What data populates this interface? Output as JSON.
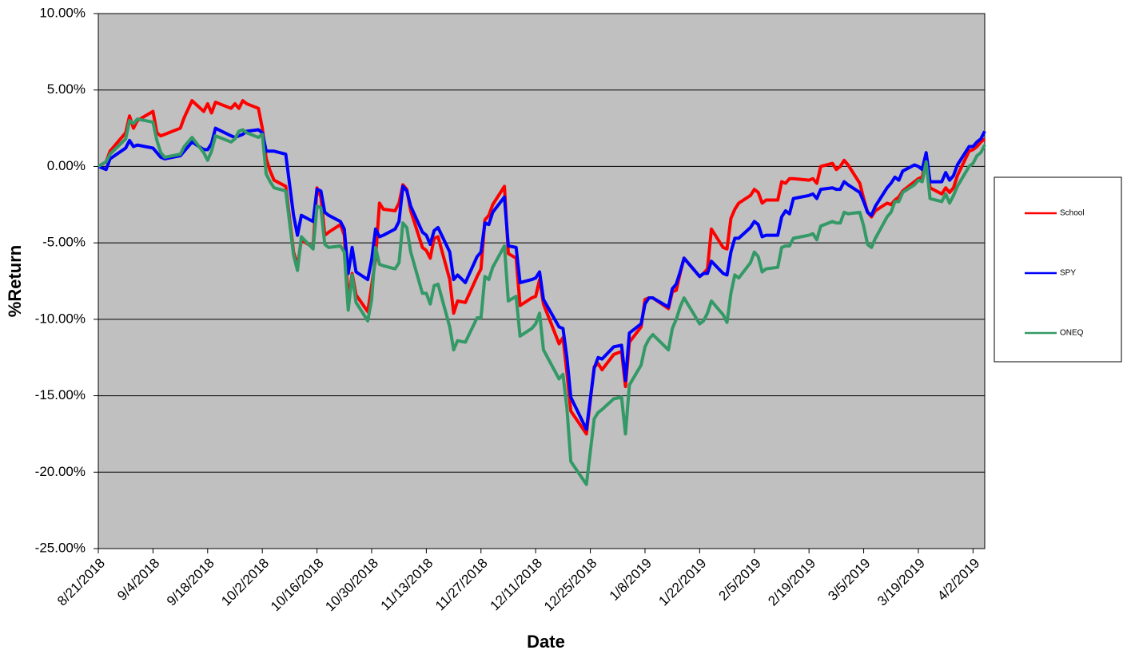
{
  "chart_data": {
    "type": "line",
    "x_label": "Date",
    "y_label": "%Return",
    "grid": true,
    "legend": "right",
    "plot_background": "#c0c0c0",
    "xlim": [
      "8/21/2018",
      "4/5/2019"
    ],
    "xticks": [
      "8/21/2018",
      "9/4/2018",
      "9/18/2018",
      "10/2/2018",
      "10/16/2018",
      "10/30/2018",
      "11/13/2018",
      "11/27/2018",
      "12/11/2018",
      "12/25/2018",
      "1/8/2019",
      "1/22/2019",
      "2/5/2019",
      "2/19/2019",
      "3/5/2019",
      "3/19/2019",
      "4/2/2019"
    ],
    "ylim": [
      -25,
      10
    ],
    "yticks": [
      {
        "value": -25,
        "label": "-25.00%"
      },
      {
        "value": -20,
        "label": "-20.00%"
      },
      {
        "value": -15,
        "label": "-15.00%"
      },
      {
        "value": -10,
        "label": "-10.00%"
      },
      {
        "value": -5,
        "label": "-5.00%"
      },
      {
        "value": 0,
        "label": "0.00%"
      },
      {
        "value": 5,
        "label": "5.00%"
      },
      {
        "value": 10,
        "label": "10.00%"
      }
    ],
    "x": [
      "8/21/2018",
      "8/23/2018",
      "8/24/2018",
      "8/28/2018",
      "8/29/2018",
      "8/30/2018",
      "8/31/2018",
      "9/4/2018",
      "9/5/2018",
      "9/6/2018",
      "9/7/2018",
      "9/11/2018",
      "9/12/2018",
      "9/14/2018",
      "9/17/2018",
      "9/18/2018",
      "9/19/2018",
      "9/20/2018",
      "9/24/2018",
      "9/25/2018",
      "9/26/2018",
      "9/27/2018",
      "9/28/2018",
      "10/1/2018",
      "10/2/2018",
      "10/3/2018",
      "10/4/2018",
      "10/5/2018",
      "10/8/2018",
      "10/10/2018",
      "10/11/2018",
      "10/12/2018",
      "10/15/2018",
      "10/16/2018",
      "10/17/2018",
      "10/18/2018",
      "10/19/2018",
      "10/22/2018",
      "10/23/2018",
      "10/24/2018",
      "10/25/2018",
      "10/26/2018",
      "10/29/2018",
      "10/30/2018",
      "10/31/2018",
      "11/1/2018",
      "11/2/2018",
      "11/5/2018",
      "11/6/2018",
      "11/7/2018",
      "11/8/2018",
      "11/9/2018",
      "11/12/2018",
      "11/13/2018",
      "11/14/2018",
      "11/15/2018",
      "11/16/2018",
      "11/19/2018",
      "11/20/2018",
      "11/21/2018",
      "11/23/2018",
      "11/26/2018",
      "11/27/2018",
      "11/28/2018",
      "11/29/2018",
      "11/30/2018",
      "12/3/2018",
      "12/4/2018",
      "12/6/2018",
      "12/7/2018",
      "12/10/2018",
      "12/11/2018",
      "12/12/2018",
      "12/13/2018",
      "12/17/2018",
      "12/18/2018",
      "12/19/2018",
      "12/20/2018",
      "12/24/2018",
      "12/26/2018",
      "12/27/2018",
      "12/28/2018",
      "12/31/2018",
      "1/2/2019",
      "1/3/2019",
      "1/4/2019",
      "1/7/2019",
      "1/8/2019",
      "1/9/2019",
      "1/10/2019",
      "1/14/2019",
      "1/15/2019",
      "1/16/2019",
      "1/17/2019",
      "1/18/2019",
      "1/22/2019",
      "1/23/2019",
      "1/24/2019",
      "1/25/2019",
      "1/28/2019",
      "1/29/2019",
      "1/30/2019",
      "1/31/2019",
      "2/1/2019",
      "2/4/2019",
      "2/5/2019",
      "2/6/2019",
      "2/7/2019",
      "2/8/2019",
      "2/11/2019",
      "2/12/2019",
      "2/13/2019",
      "2/14/2019",
      "2/15/2019",
      "2/19/2019",
      "2/20/2019",
      "2/21/2019",
      "2/22/2019",
      "2/25/2019",
      "2/26/2019",
      "2/27/2019",
      "2/28/2019",
      "3/1/2019",
      "3/4/2019",
      "3/5/2019",
      "3/6/2019",
      "3/7/2019",
      "3/8/2019",
      "3/11/2019",
      "3/12/2019",
      "3/13/2019",
      "3/14/2019",
      "3/15/2019",
      "3/18/2019",
      "3/19/2019",
      "3/20/2019",
      "3/21/2019",
      "3/22/2019",
      "3/25/2019",
      "3/26/2019",
      "3/27/2019",
      "3/28/2019",
      "3/29/2019",
      "4/1/2019",
      "4/2/2019",
      "4/3/2019",
      "4/4/2019",
      "4/5/2019"
    ],
    "series": [
      {
        "name": "School",
        "color": "#ff0000",
        "values": [
          0,
          0.3,
          1.0,
          2.2,
          3.3,
          2.5,
          3.0,
          3.6,
          2.2,
          2.0,
          2.1,
          2.5,
          3.2,
          4.3,
          3.6,
          4.1,
          3.5,
          4.2,
          3.8,
          4.1,
          3.8,
          4.3,
          4.1,
          3.8,
          2.5,
          0.5,
          -0.3,
          -0.9,
          -1.3,
          -5.6,
          -6.5,
          -4.8,
          -5.3,
          -1.4,
          -2.0,
          -4.5,
          -4.3,
          -3.8,
          -4.5,
          -8.8,
          -7.0,
          -8.4,
          -9.5,
          -7.8,
          -6.0,
          -2.4,
          -2.8,
          -2.9,
          -2.4,
          -1.2,
          -1.5,
          -2.9,
          -5.3,
          -5.5,
          -6.0,
          -4.7,
          -4.6,
          -7.4,
          -9.6,
          -8.8,
          -8.9,
          -7.2,
          -6.7,
          -3.5,
          -3.2,
          -2.5,
          -1.3,
          -5.7,
          -6.0,
          -9.1,
          -8.6,
          -8.5,
          -7.4,
          -9.0,
          -11.6,
          -11.2,
          -13.5,
          -16.0,
          -17.5,
          -13.1,
          -12.9,
          -13.3,
          -12.3,
          -12.1,
          -14.4,
          -11.5,
          -10.5,
          -8.7,
          -8.6,
          -8.6,
          -9.3,
          -8.2,
          -8.1,
          -7.0,
          -6.0,
          -7.2,
          -7.0,
          -6.7,
          -4.1,
          -5.3,
          -5.4,
          -3.4,
          -2.8,
          -2.4,
          -1.9,
          -1.5,
          -1.7,
          -2.4,
          -2.2,
          -2.2,
          -1.0,
          -1.1,
          -0.8,
          -0.8,
          -0.9,
          -0.8,
          -1.1,
          0.0,
          0.2,
          -0.2,
          0.0,
          0.4,
          0.1,
          -1.1,
          -2.1,
          -3.0,
          -3.3,
          -2.9,
          -2.4,
          -2.5,
          -2.2,
          -2.0,
          -1.6,
          -1.0,
          -0.8,
          -0.7,
          0.6,
          -1.4,
          -1.8,
          -1.4,
          -1.7,
          -1.4,
          -0.6,
          1.0,
          1.1,
          1.3,
          1.6,
          1.8
        ]
      },
      {
        "name": "SPY",
        "color": "#0000ff",
        "values": [
          0,
          -0.2,
          0.5,
          1.2,
          1.7,
          1.3,
          1.4,
          1.2,
          0.9,
          0.6,
          0.5,
          0.7,
          1.0,
          1.6,
          1.1,
          1.1,
          1.5,
          2.5,
          2.0,
          1.9,
          2.0,
          2.1,
          2.3,
          2.4,
          2.2,
          1.0,
          1.0,
          1.0,
          0.8,
          -3.2,
          -4.5,
          -3.2,
          -3.6,
          -1.5,
          -1.6,
          -3.0,
          -3.2,
          -3.6,
          -4.1,
          -7.0,
          -5.3,
          -6.9,
          -7.4,
          -6.1,
          -4.1,
          -4.6,
          -4.5,
          -4.1,
          -3.6,
          -1.3,
          -1.6,
          -2.6,
          -4.3,
          -4.5,
          -5.1,
          -4.2,
          -4.0,
          -5.6,
          -7.4,
          -7.1,
          -7.6,
          -5.9,
          -5.6,
          -3.7,
          -3.8,
          -3.0,
          -2.0,
          -5.2,
          -5.3,
          -7.6,
          -7.4,
          -7.3,
          -6.9,
          -8.7,
          -10.5,
          -10.6,
          -12.5,
          -15.1,
          -17.2,
          -13.2,
          -12.5,
          -12.6,
          -11.8,
          -11.7,
          -14.0,
          -10.9,
          -10.3,
          -9.0,
          -8.6,
          -8.6,
          -9.2,
          -8.0,
          -7.7,
          -6.9,
          -6.0,
          -7.2,
          -7.0,
          -7.0,
          -6.2,
          -7.0,
          -7.1,
          -5.6,
          -4.7,
          -4.7,
          -4.0,
          -3.6,
          -3.8,
          -4.6,
          -4.5,
          -4.5,
          -3.3,
          -2.9,
          -3.1,
          -2.1,
          -1.9,
          -1.8,
          -2.1,
          -1.5,
          -1.4,
          -1.5,
          -1.5,
          -1.0,
          -1.2,
          -1.7,
          -2.3,
          -3.0,
          -3.2,
          -2.6,
          -1.4,
          -1.1,
          -0.7,
          -0.9,
          -0.3,
          0.1,
          0.0,
          -0.2,
          0.9,
          -1.0,
          -1.0,
          -0.4,
          -0.9,
          -0.6,
          0.1,
          1.3,
          1.3,
          1.6,
          1.8,
          2.3
        ]
      },
      {
        "name": "ONEQ",
        "color": "#339966",
        "values": [
          0,
          0.3,
          0.8,
          1.8,
          3.0,
          2.8,
          3.1,
          2.9,
          1.7,
          0.9,
          0.6,
          0.8,
          1.3,
          1.9,
          0.9,
          0.4,
          1.0,
          2.0,
          1.6,
          1.8,
          2.3,
          2.4,
          2.2,
          1.9,
          2.1,
          -0.5,
          -1.0,
          -1.4,
          -1.6,
          -5.8,
          -6.8,
          -4.6,
          -5.4,
          -2.6,
          -2.7,
          -5.1,
          -5.3,
          -5.2,
          -5.6,
          -9.4,
          -7.1,
          -8.9,
          -10.1,
          -8.7,
          -5.3,
          -6.4,
          -6.5,
          -6.7,
          -6.3,
          -3.7,
          -4.0,
          -5.6,
          -8.3,
          -8.3,
          -9.0,
          -7.8,
          -7.7,
          -10.5,
          -12.0,
          -11.4,
          -11.5,
          -9.9,
          -9.9,
          -7.2,
          -7.4,
          -6.6,
          -5.2,
          -8.8,
          -8.5,
          -11.1,
          -10.6,
          -10.3,
          -9.6,
          -12.0,
          -13.9,
          -13.6,
          -15.8,
          -19.3,
          -20.8,
          -16.5,
          -16.1,
          -15.9,
          -15.2,
          -15.1,
          -17.5,
          -14.3,
          -13.0,
          -11.8,
          -11.3,
          -11.0,
          -12.0,
          -10.6,
          -10.0,
          -9.2,
          -8.6,
          -10.3,
          -10.1,
          -9.6,
          -8.8,
          -9.7,
          -10.2,
          -8.3,
          -7.1,
          -7.3,
          -6.3,
          -5.6,
          -5.9,
          -6.9,
          -6.7,
          -6.6,
          -5.3,
          -5.2,
          -5.2,
          -4.7,
          -4.5,
          -4.4,
          -4.8,
          -3.9,
          -3.6,
          -3.7,
          -3.7,
          -3.0,
          -3.1,
          -3.0,
          -3.9,
          -5.1,
          -5.3,
          -4.7,
          -3.3,
          -3.0,
          -2.3,
          -2.3,
          -1.7,
          -1.2,
          -0.9,
          -1.0,
          0.3,
          -2.1,
          -2.3,
          -1.8,
          -2.4,
          -1.9,
          -1.3,
          0.0,
          0.2,
          0.7,
          0.9,
          1.4
        ]
      }
    ]
  }
}
